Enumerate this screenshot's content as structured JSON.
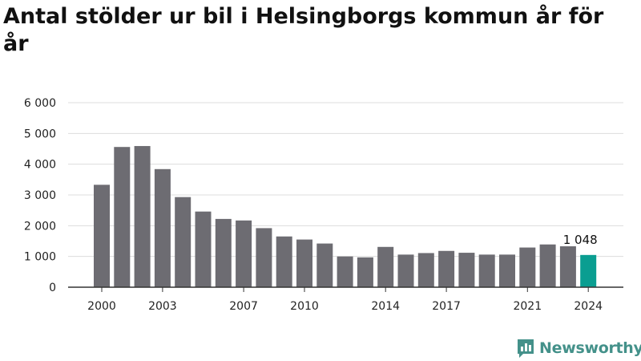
{
  "header": {
    "title": "Antal stölder ur bil i Helsingborgs kommun år för år"
  },
  "brand": {
    "name": "Newsworthy",
    "color": "#44918a"
  },
  "colors": {
    "bar": "#6d6c72",
    "highlight": "#0a9e91",
    "grid": "#dddddd",
    "axis": "#333333"
  },
  "chart_data": {
    "type": "bar",
    "x": [
      2000,
      2001,
      2002,
      2003,
      2004,
      2005,
      2006,
      2007,
      2008,
      2009,
      2010,
      2011,
      2012,
      2013,
      2014,
      2015,
      2016,
      2017,
      2018,
      2019,
      2020,
      2021,
      2022,
      2023,
      2024
    ],
    "values": [
      3330,
      4560,
      4590,
      3840,
      2930,
      2460,
      2220,
      2170,
      1920,
      1650,
      1550,
      1420,
      1000,
      970,
      1310,
      1060,
      1110,
      1180,
      1120,
      1060,
      1060,
      1290,
      1390,
      1330,
      1048
    ],
    "x_tick_labels": [
      "2000",
      "2003",
      "2007",
      "2010",
      "2014",
      "2017",
      "2021",
      "2024"
    ],
    "y_ticks": [
      0,
      1000,
      2000,
      3000,
      4000,
      5000,
      6000
    ],
    "y_tick_labels": [
      "0",
      "1 000",
      "2 000",
      "3 000",
      "4 000",
      "5 000",
      "6 000"
    ],
    "ylim": [
      0,
      6000
    ],
    "highlight_index": 24,
    "data_label": "1 048",
    "grid": true,
    "title": "Antal stölder ur bil i Helsingborgs kommun år för år",
    "xlabel": "",
    "ylabel": ""
  }
}
